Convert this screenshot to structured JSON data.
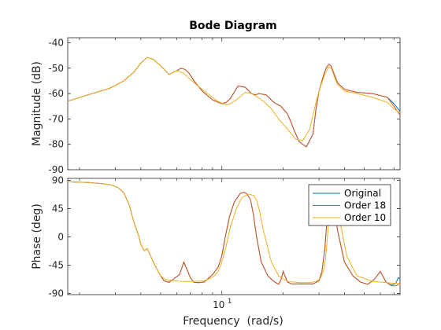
{
  "chart_data": {
    "type": "line",
    "title": "Bode Diagram",
    "xlabel": "Frequency  (rad/s)",
    "x_scale": "log",
    "x_range": [
      1.75,
      75
    ],
    "x_ticks": [
      {
        "value": 10,
        "label": "10",
        "sup": "1"
      }
    ],
    "legend": {
      "placement": "top-right",
      "panel": "phase"
    },
    "colors": {
      "Original": "#0072BD",
      "Order 18": "#D95319",
      "Order 10": "#EDB120"
    },
    "panels": [
      {
        "name": "magnitude",
        "ylabel": "Magnitude (dB)",
        "ylim": [
          -90,
          -38
        ],
        "yticks": [
          "-40",
          "-50",
          "-60",
          "-70",
          "-80",
          "-90"
        ],
        "ytick_values": [
          -40,
          -50,
          -60,
          -70,
          -80,
          -90
        ],
        "series": [
          {
            "name": "Original",
            "x": [
              1.75,
              2.2,
              2.8,
              3.3,
              3.7,
              4.0,
              4.3,
              4.6,
              5.0,
              5.5,
              6.0,
              6.3,
              6.6,
              6.9,
              7.3,
              8.0,
              9.0,
              10.0,
              10.5,
              11.0,
              12.0,
              13.0,
              14.0,
              14.6,
              15.2,
              16.5,
              18.0,
              19.5,
              21.0,
              21.8,
              22.5,
              24.0,
              26.0,
              28.0,
              29.0,
              30.0,
              31.5,
              32.5,
              33.5,
              34.3,
              35.5,
              37.0,
              40.0,
              46.0,
              55.0,
              65.0,
              70.0,
              75.0
            ],
            "y": [
              -63,
              -60.5,
              -58,
              -55,
              -51.5,
              -48,
              -45.7,
              -46.5,
              -49,
              -52.5,
              -51,
              -50,
              -50.5,
              -52,
              -55,
              -59,
              -62.5,
              -64,
              -63.5,
              -62,
              -57,
              -57.5,
              -60,
              -60.5,
              -60,
              -60.5,
              -63.5,
              -65,
              -68,
              -71,
              -74,
              -79,
              -81,
              -76,
              -66,
              -59,
              -53,
              -50,
              -48.5,
              -49,
              -52,
              -55.8,
              -58.3,
              -59.5,
              -60,
              -61.5,
              -64,
              -67
            ]
          },
          {
            "name": "Order 18",
            "x": [
              1.75,
              2.2,
              2.8,
              3.3,
              3.7,
              4.0,
              4.3,
              4.6,
              5.0,
              5.5,
              6.0,
              6.3,
              6.6,
              6.9,
              7.3,
              8.0,
              9.0,
              10.0,
              10.5,
              11.0,
              12.0,
              13.0,
              14.0,
              14.6,
              15.2,
              16.5,
              18.0,
              19.5,
              21.0,
              21.8,
              22.5,
              24.0,
              26.0,
              28.0,
              29.0,
              30.0,
              31.5,
              32.5,
              33.5,
              34.3,
              35.5,
              37.0,
              40.0,
              46.0,
              55.0,
              65.0,
              70.0,
              75.0
            ],
            "y": [
              -63,
              -60.5,
              -58,
              -55,
              -51.5,
              -48,
              -45.7,
              -46.5,
              -49,
              -52.5,
              -51,
              -50,
              -50.5,
              -52,
              -55,
              -59,
              -62.5,
              -64,
              -63.5,
              -62,
              -57,
              -57.5,
              -60,
              -60.5,
              -60,
              -60.5,
              -63.5,
              -65,
              -68,
              -71,
              -74,
              -79,
              -81,
              -76,
              -66,
              -59,
              -53,
              -50,
              -48.5,
              -49,
              -52,
              -55.8,
              -58.3,
              -59.5,
              -60,
              -61.5,
              -65,
              -68.5
            ]
          },
          {
            "name": "Order 10",
            "x": [
              1.75,
              2.2,
              2.8,
              3.3,
              3.7,
              4.0,
              4.3,
              4.6,
              5.0,
              5.5,
              6.0,
              6.5,
              7.0,
              7.5,
              8.5,
              9.5,
              10.5,
              11.0,
              12.0,
              13.0,
              14.0,
              15.0,
              16.0,
              17.5,
              19.0,
              21.0,
              23.0,
              25.0,
              27.0,
              28.5,
              30.0,
              32.0,
              33.5,
              34.5,
              35.5,
              37.0,
              40.0,
              46.0,
              55.0,
              65.0,
              70.0,
              75.0
            ],
            "y": [
              -63,
              -60.5,
              -58,
              -55,
              -51.5,
              -48,
              -45.7,
              -46.5,
              -49,
              -52.5,
              -51,
              -52,
              -54.5,
              -56.5,
              -60,
              -63,
              -64.5,
              -64,
              -62,
              -59.5,
              -60,
              -61.5,
              -63,
              -66,
              -70,
              -74,
              -78,
              -78.5,
              -74,
              -66,
              -59,
              -52.5,
              -49.5,
              -50,
              -53,
              -56.5,
              -59,
              -60,
              -61.5,
              -63.5,
              -66,
              -67.5
            ]
          }
        ]
      },
      {
        "name": "phase",
        "ylabel": "Phase (deg)",
        "ylim": [
          -92,
          93
        ],
        "yticks": [
          "90",
          "45",
          "0",
          "-45",
          "-90"
        ],
        "ytick_values": [
          90,
          45,
          0,
          -45,
          -90
        ],
        "series": [
          {
            "name": "Original",
            "x": [
              1.75,
              2.2,
              2.6,
              2.9,
              3.1,
              3.3,
              3.5,
              3.7,
              3.9,
              4.0,
              4.15,
              4.3,
              4.5,
              4.7,
              5.0,
              5.2,
              5.5,
              5.8,
              6.2,
              6.5,
              6.8,
              7.0,
              7.3,
              7.7,
              8.2,
              9.0,
              9.6,
              10.0,
              10.4,
              10.9,
              11.5,
              12.3,
              12.8,
              13.2,
              13.8,
              14.3,
              14.8,
              15.6,
              16.8,
              18.0,
              19.0,
              19.5,
              20.0,
              21.0,
              22.0,
              25.0,
              28.0,
              30.0,
              31.0,
              32.0,
              32.8,
              33.5,
              34.5,
              35.5,
              37.0,
              40.0,
              44.0,
              48.0,
              52.0,
              56.0,
              60.0,
              64.0,
              68.0,
              71.5,
              73.5,
              75.0
            ],
            "y": [
              87.5,
              86.5,
              84.5,
              82,
              78,
              70,
              52,
              23,
              2,
              -12,
              -22,
              -19,
              -33,
              -46,
              -62,
              -70,
              -72.5,
              -67,
              -60,
              -40,
              -55,
              -65,
              -72.5,
              -73,
              -72,
              -60,
              -48,
              -30,
              0,
              32,
              55,
              69,
              70.5,
              69,
              60,
              35,
              0,
              -40,
              -62,
              -71,
              -75.5,
              -69,
              -55,
              -72,
              -75,
              -75,
              -75,
              -70,
              -55,
              -20,
              25,
              55,
              60,
              45,
              10,
              -40,
              -62,
              -72,
              -75.5,
              -68,
              -55,
              -72,
              -77,
              -74,
              -65,
              -67
            ]
          },
          {
            "name": "Order 18",
            "x": [
              1.75,
              2.2,
              2.6,
              2.9,
              3.1,
              3.3,
              3.5,
              3.7,
              3.9,
              4.0,
              4.15,
              4.3,
              4.5,
              4.7,
              5.0,
              5.2,
              5.5,
              5.8,
              6.2,
              6.5,
              6.8,
              7.0,
              7.3,
              7.7,
              8.2,
              9.0,
              9.6,
              10.0,
              10.4,
              10.9,
              11.5,
              12.3,
              12.8,
              13.2,
              13.8,
              14.3,
              14.8,
              15.6,
              16.8,
              18.0,
              19.0,
              19.5,
              20.0,
              21.0,
              22.0,
              25.0,
              28.0,
              30.0,
              31.0,
              32.0,
              32.8,
              33.5,
              34.5,
              35.5,
              37.0,
              40.0,
              44.0,
              48.0,
              52.0,
              56.0,
              60.0,
              64.0,
              68.0,
              71.5,
              73.5,
              75.0
            ],
            "y": [
              87.5,
              86.5,
              84.5,
              82,
              78,
              70,
              52,
              23,
              2,
              -12,
              -22,
              -19,
              -33,
              -46,
              -62,
              -70,
              -72.5,
              -67,
              -60,
              -40,
              -55,
              -65,
              -72.5,
              -73,
              -72,
              -60,
              -48,
              -30,
              0,
              32,
              55,
              69,
              70.5,
              69,
              60,
              35,
              0,
              -40,
              -62,
              -71,
              -75.5,
              -69,
              -55,
              -72,
              -75,
              -75,
              -75,
              -70,
              -55,
              -20,
              25,
              55,
              60,
              45,
              10,
              -40,
              -62,
              -72,
              -75.5,
              -68,
              -55,
              -72,
              -78,
              -78,
              -76,
              -73
            ]
          },
          {
            "name": "Order 10",
            "x": [
              1.75,
              2.2,
              2.6,
              2.9,
              3.1,
              3.3,
              3.5,
              3.7,
              3.9,
              4.0,
              4.15,
              4.3,
              4.5,
              4.7,
              5.0,
              5.3,
              5.8,
              6.5,
              7.3,
              8.2,
              8.8,
              9.2,
              9.6,
              10.0,
              10.5,
              11.0,
              11.8,
              12.5,
              13.5,
              14.3,
              14.8,
              15.3,
              16.0,
              17.5,
              19.0,
              21.0,
              24.0,
              27.0,
              29.0,
              30.5,
              31.5,
              32.3,
              33.0,
              33.8,
              35.0,
              36.5,
              38.0,
              41.0,
              46.0,
              55.0,
              65.0,
              75.0
            ],
            "y": [
              87.5,
              86.5,
              84.5,
              82,
              78,
              70,
              52,
              23,
              2,
              -12,
              -22,
              -19,
              -33,
              -46,
              -62,
              -68,
              -70,
              -71,
              -71,
              -70,
              -66,
              -62,
              -55,
              -40,
              -15,
              15,
              45,
              62,
              68,
              66,
              58,
              42,
              10,
              -40,
              -62,
              -71,
              -73,
              -73,
              -71,
              -66,
              -55,
              -35,
              0,
              45,
              73,
              62,
              25,
              -30,
              -62,
              -71,
              -73,
              -75
            ]
          }
        ]
      }
    ]
  }
}
